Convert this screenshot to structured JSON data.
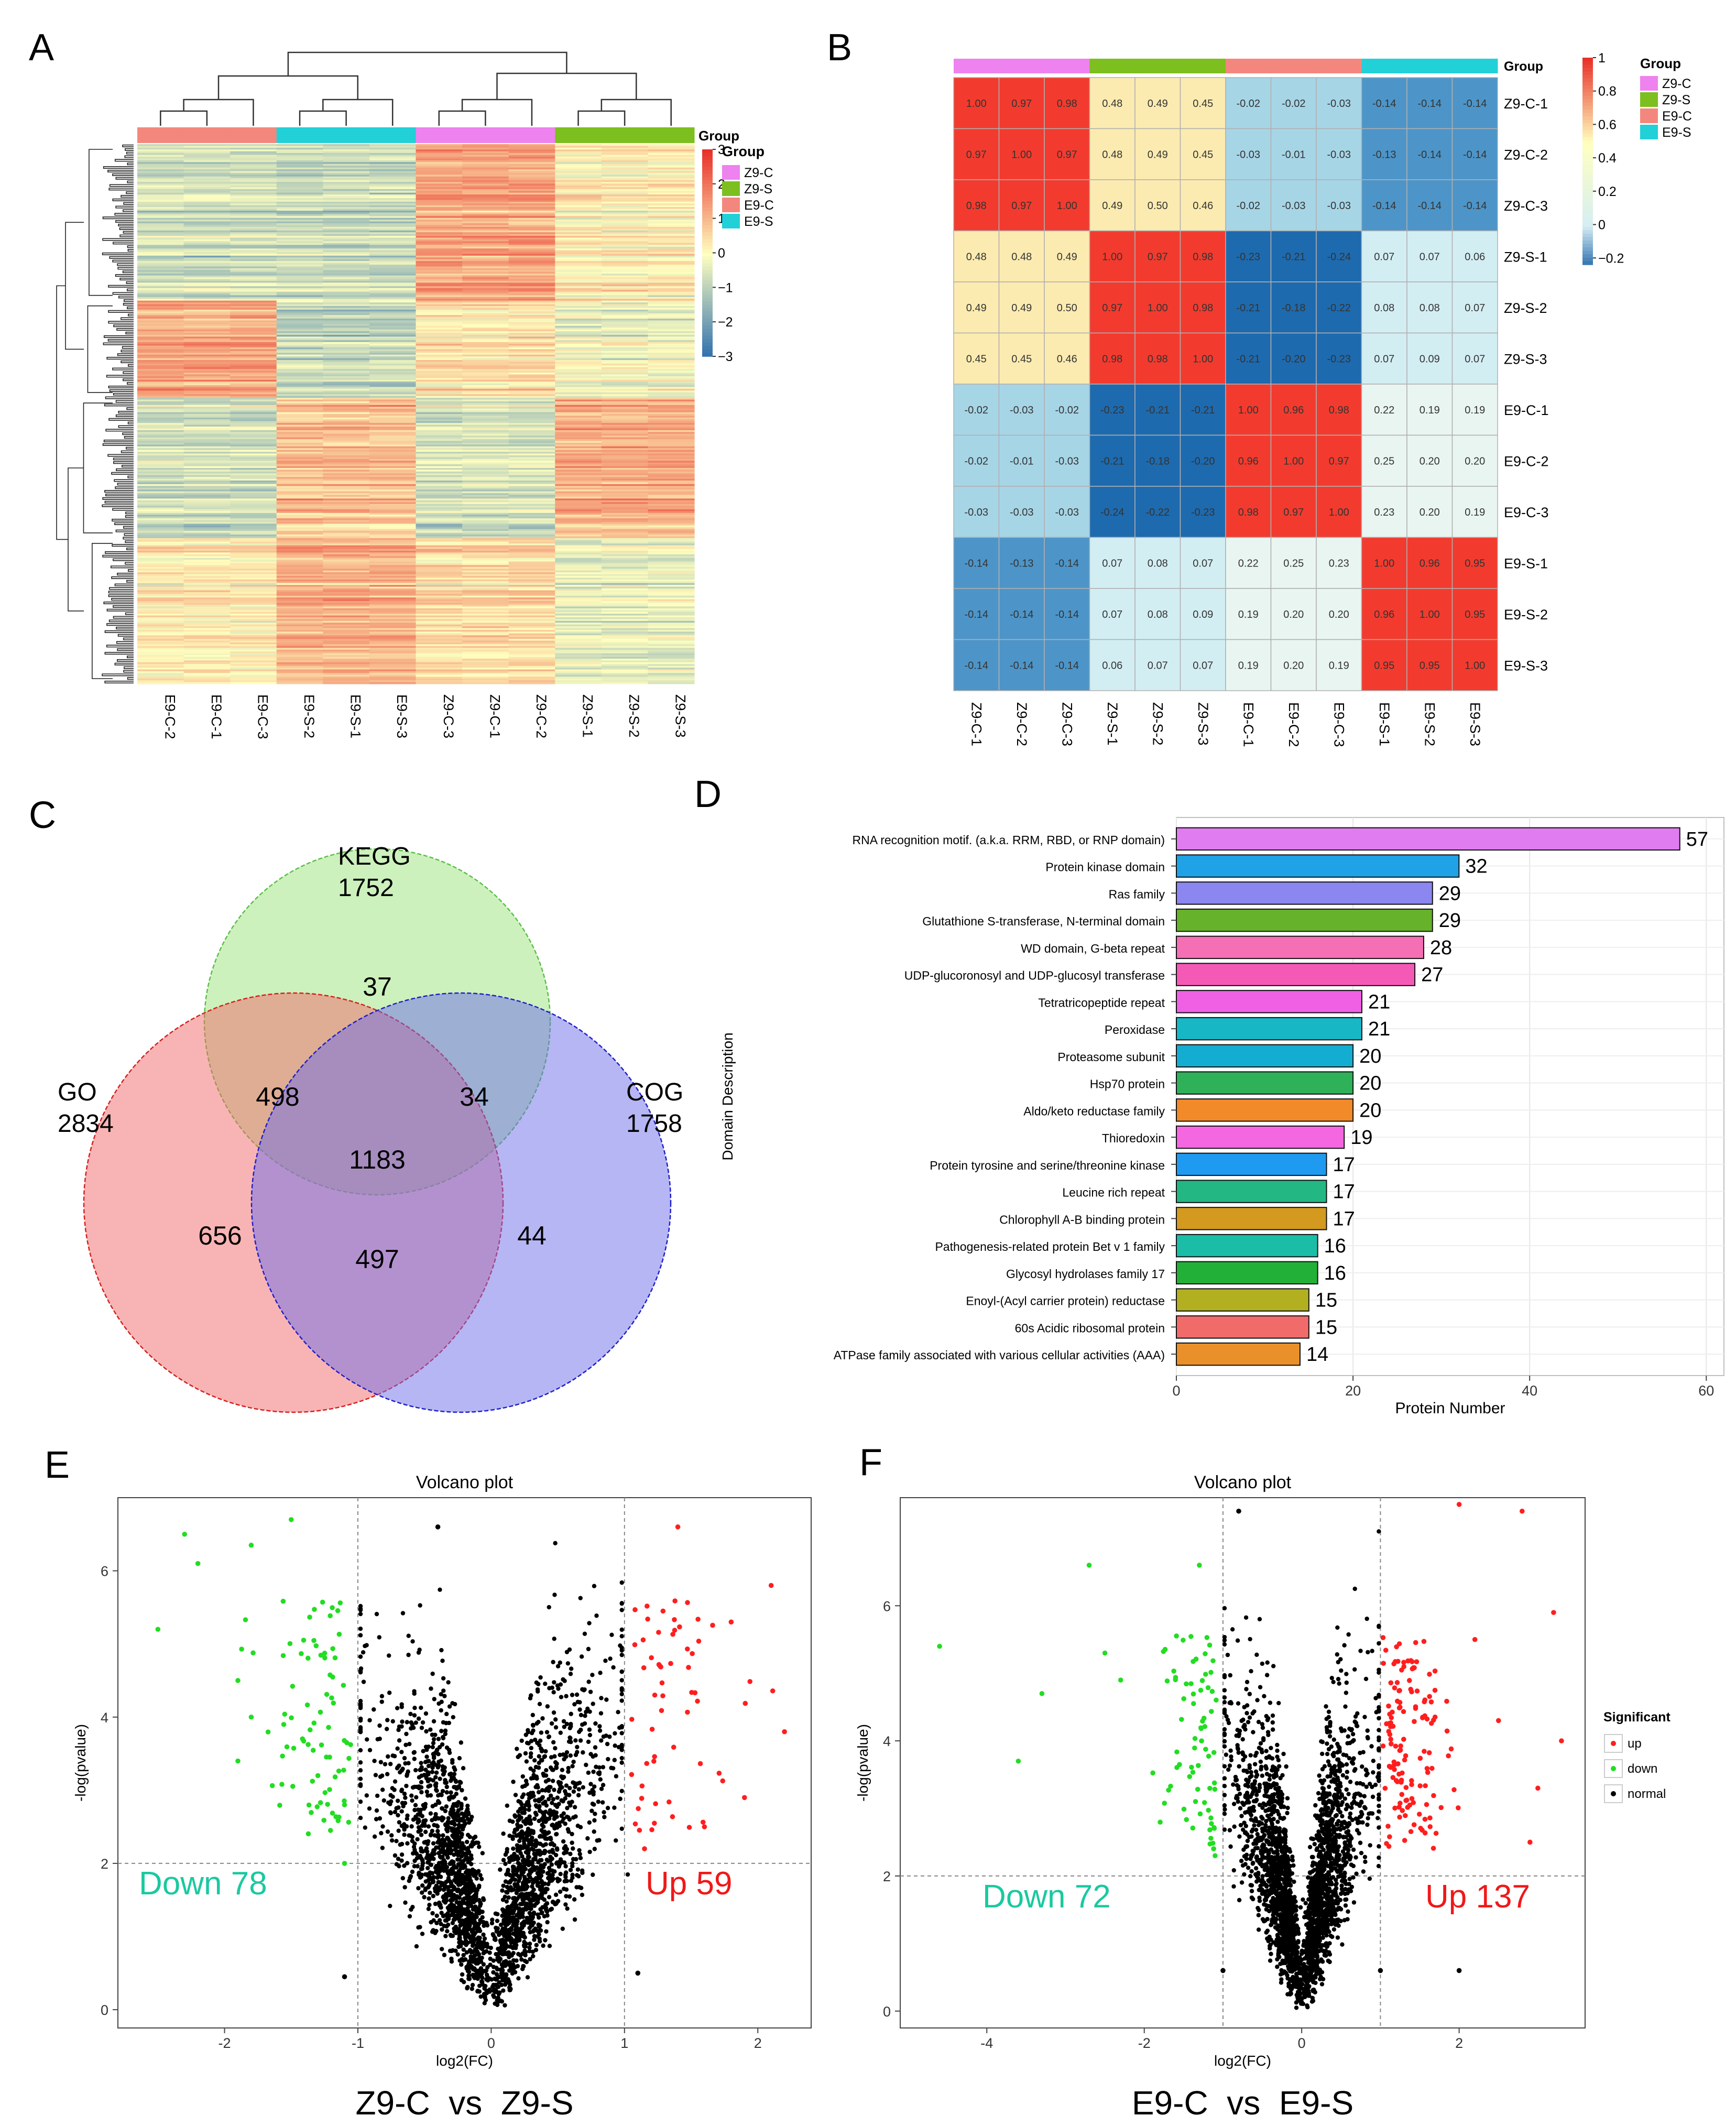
{
  "panels": {
    "A": {
      "letter": "A"
    },
    "B": {
      "letter": "B"
    },
    "C": {
      "letter": "C"
    },
    "D": {
      "letter": "D"
    },
    "E": {
      "letter": "E"
    },
    "F": {
      "letter": "F"
    }
  },
  "chart_data": [
    {
      "id": "A",
      "type": "heatmap",
      "legend_title": "Group",
      "groups": [
        {
          "name": "Z9-C",
          "color": "#EE82EE"
        },
        {
          "name": "Z9-S",
          "color": "#7CBF1F"
        },
        {
          "name": "E9-C",
          "color": "#F4877D"
        },
        {
          "name": "E9-S",
          "color": "#22D0D8"
        }
      ],
      "column_labels": [
        "E9-C-2",
        "E9-C-1",
        "E9-C-3",
        "E9-S-2",
        "E9-S-1",
        "E9-S-3",
        "Z9-C-3",
        "Z9-C-1",
        "Z9-C-2",
        "Z9-S-1",
        "Z9-S-2",
        "Z9-S-3"
      ],
      "column_groups": [
        "E9-C",
        "E9-C",
        "E9-C",
        "E9-S",
        "E9-S",
        "E9-S",
        "Z9-C",
        "Z9-C",
        "Z9-C",
        "Z9-S",
        "Z9-S",
        "Z9-S"
      ],
      "colorbar_ticks": [
        "3",
        "2",
        "1",
        "0",
        "-1",
        "-2",
        "-3"
      ],
      "colorbar_range": [
        -3,
        3
      ],
      "colors": {
        "low": "#2E6FAE",
        "mid": "#FFFFBF",
        "high": "#E8312A"
      }
    },
    {
      "id": "B",
      "type": "heatmap",
      "legend_title": "Group",
      "groups": [
        {
          "name": "Z9-C",
          "color": "#EE82EE"
        },
        {
          "name": "Z9-S",
          "color": "#7CBF1F"
        },
        {
          "name": "E9-C",
          "color": "#F4877D"
        },
        {
          "name": "E9-S",
          "color": "#22D0D8"
        }
      ],
      "labels": [
        "Z9-C-1",
        "Z9-C-2",
        "Z9-C-3",
        "Z9-S-1",
        "Z9-S-2",
        "Z9-S-3",
        "E9-C-1",
        "E9-C-2",
        "E9-C-3",
        "E9-S-1",
        "E9-S-2",
        "E9-S-3"
      ],
      "label_groups": [
        "Z9-C",
        "Z9-C",
        "Z9-C",
        "Z9-S",
        "Z9-S",
        "Z9-S",
        "E9-C",
        "E9-C",
        "E9-C",
        "E9-S",
        "E9-S",
        "E9-S"
      ],
      "matrix": [
        [
          "1.00",
          "0.97",
          "0.98",
          "0.48",
          "0.49",
          "0.45",
          "-0.02",
          "-0.02",
          "-0.03",
          "-0.14",
          "-0.14",
          "-0.14"
        ],
        [
          "0.97",
          "1.00",
          "0.97",
          "0.48",
          "0.49",
          "0.45",
          "-0.03",
          "-0.01",
          "-0.03",
          "-0.13",
          "-0.14",
          "-0.14"
        ],
        [
          "0.98",
          "0.97",
          "1.00",
          "0.49",
          "0.50",
          "0.46",
          "-0.02",
          "-0.03",
          "-0.03",
          "-0.14",
          "-0.14",
          "-0.14"
        ],
        [
          "0.48",
          "0.48",
          "0.49",
          "1.00",
          "0.97",
          "0.98",
          "-0.23",
          "-0.21",
          "-0.24",
          "0.07",
          "0.07",
          "0.06"
        ],
        [
          "0.49",
          "0.49",
          "0.50",
          "0.97",
          "1.00",
          "0.98",
          "-0.21",
          "-0.18",
          "-0.22",
          "0.08",
          "0.08",
          "0.07"
        ],
        [
          "0.45",
          "0.45",
          "0.46",
          "0.98",
          "0.98",
          "1.00",
          "-0.21",
          "-0.20",
          "-0.23",
          "0.07",
          "0.09",
          "0.07"
        ],
        [
          "-0.02",
          "-0.03",
          "-0.02",
          "-0.23",
          "-0.21",
          "-0.21",
          "1.00",
          "0.96",
          "0.98",
          "0.22",
          "0.19",
          "0.19"
        ],
        [
          "-0.02",
          "-0.01",
          "-0.03",
          "-0.21",
          "-0.18",
          "-0.20",
          "0.96",
          "1.00",
          "0.97",
          "0.25",
          "0.20",
          "0.20"
        ],
        [
          "-0.03",
          "-0.03",
          "-0.03",
          "-0.24",
          "-0.22",
          "-0.23",
          "0.98",
          "0.97",
          "1.00",
          "0.23",
          "0.20",
          "0.19"
        ],
        [
          "-0.14",
          "-0.13",
          "-0.14",
          "0.07",
          "0.08",
          "0.07",
          "0.22",
          "0.25",
          "0.23",
          "1.00",
          "0.96",
          "0.95"
        ],
        [
          "-0.14",
          "-0.14",
          "-0.14",
          "0.07",
          "0.08",
          "0.09",
          "0.19",
          "0.20",
          "0.20",
          "0.96",
          "1.00",
          "0.95"
        ],
        [
          "-0.14",
          "-0.14",
          "-0.14",
          "0.06",
          "0.07",
          "0.07",
          "0.19",
          "0.20",
          "0.19",
          "0.95",
          "0.95",
          "1.00"
        ]
      ],
      "colorbar_ticks": [
        "1",
        "0.8",
        "0.6",
        "0.4",
        "0.2",
        "0",
        "-0.2"
      ],
      "colorbar_range": [
        -0.24,
        1.0
      ],
      "colors": {
        "low": "#2E6FAE",
        "mid": "#FFFFBF",
        "high": "#E8312A"
      }
    },
    {
      "id": "C",
      "type": "venn",
      "sets": [
        {
          "name": "KEGG",
          "total": "1752",
          "color": "#9BE37A"
        },
        {
          "name": "GO",
          "total": "2834",
          "color": "#F26A6A"
        },
        {
          "name": "COG",
          "total": "1758",
          "color": "#6E6EEA"
        }
      ],
      "regions": [
        {
          "sets": [
            "KEGG"
          ],
          "value": "37"
        },
        {
          "sets": [
            "GO",
            "KEGG"
          ],
          "value": "498"
        },
        {
          "sets": [
            "KEGG",
            "COG"
          ],
          "value": "34"
        },
        {
          "sets": [
            "GO",
            "KEGG",
            "COG"
          ],
          "value": "1183"
        },
        {
          "sets": [
            "GO"
          ],
          "value": "656"
        },
        {
          "sets": [
            "GO",
            "COG"
          ],
          "value": "497"
        },
        {
          "sets": [
            "COG"
          ],
          "value": "44"
        }
      ]
    },
    {
      "id": "D",
      "type": "bar",
      "orientation": "horizontal",
      "xlabel": "Protein Number",
      "ylabel": "Domain Description",
      "xlim": [
        0,
        62
      ],
      "xticks": [
        0,
        20,
        40,
        60
      ],
      "categories": [
        "RNA recognition motif. (a.k.a. RRM, RBD, or RNP domain)",
        "Protein kinase domain",
        "Ras family",
        "Glutathione S-transferase, N-terminal domain",
        "WD domain, G-beta repeat",
        "UDP-glucoronosyl and UDP-glucosyl transferase",
        "Tetratricopeptide repeat",
        "Peroxidase",
        "Proteasome subunit",
        "Hsp70 protein",
        "Aldo/keto reductase family",
        "Thioredoxin",
        "Protein tyrosine and serine/threonine kinase",
        "Leucine rich repeat",
        "Chlorophyll A-B binding protein",
        "Pathogenesis-related protein Bet v 1 family",
        "Glycosyl hydrolases family 17",
        "Enoyl-(Acyl carrier protein) reductase",
        "60s Acidic ribosomal protein",
        "ATPase family associated with various cellular activities (AAA)"
      ],
      "values": [
        57,
        32,
        29,
        29,
        28,
        27,
        21,
        21,
        20,
        20,
        20,
        19,
        17,
        17,
        17,
        16,
        16,
        15,
        15,
        14
      ],
      "colors": [
        "#E07CF0",
        "#1FA2E6",
        "#8B86F0",
        "#66B22A",
        "#F56FB5",
        "#F559B6",
        "#F060E4",
        "#18B7C5",
        "#14ADD2",
        "#2FB15A",
        "#F28A29",
        "#F567E0",
        "#1E9BF0",
        "#22B783",
        "#D39A1F",
        "#1BBDA7",
        "#23B038",
        "#B2B020",
        "#F26B6B",
        "#E9902A"
      ],
      "grid": true
    },
    {
      "id": "E",
      "type": "scatter",
      "title": "Volcano plot",
      "subtitle": "Z9-C_vs_Z9-S",
      "xlabel": "log2(FC)",
      "ylabel": "-log(pvalue)",
      "xlim": [
        -2.8,
        2.4
      ],
      "ylim": [
        -0.25,
        7.0
      ],
      "xticks": [
        -2,
        -1,
        0,
        1,
        2
      ],
      "yticks": [
        0,
        2,
        4,
        6
      ],
      "fc_cutoff": 1,
      "p_cutoff": 2,
      "down_label": "Down 78",
      "up_label": "Up 59",
      "counts": {
        "down": 78,
        "up": 59,
        "normal": 2600
      },
      "outer_points": [
        [
          -2.3,
          6.5
        ],
        [
          -2.2,
          6.1
        ],
        [
          -1.8,
          6.35
        ],
        [
          -1.5,
          6.7
        ],
        [
          -2.5,
          5.2
        ],
        [
          -1.9,
          3.4
        ],
        [
          -1.8,
          4.0
        ],
        [
          -1.9,
          4.5
        ],
        [
          -1.3,
          3.2
        ],
        [
          -1.1,
          2.8
        ],
        [
          -0.4,
          6.6
        ],
        [
          1.4,
          6.6
        ],
        [
          2.1,
          5.8
        ],
        [
          1.8,
          5.3
        ],
        [
          2.2,
          3.8
        ],
        [
          1.9,
          2.9
        ],
        [
          -1.1,
          0.45
        ],
        [
          1.1,
          0.5
        ],
        [
          -1.1,
          2.0
        ],
        [
          1.15,
          2.2
        ]
      ],
      "colors": {
        "up": "#FF1E1E",
        "down": "#22DD22",
        "normal": "#000000"
      }
    },
    {
      "id": "F",
      "type": "scatter",
      "title": "Volcano plot",
      "subtitle": "E9-C_vs_E9-S",
      "xlabel": "log2(FC)",
      "ylabel": "-log(pvalue)",
      "xlim": [
        -5.1,
        3.6
      ],
      "ylim": [
        -0.25,
        7.6
      ],
      "xticks": [
        -4,
        -2,
        0,
        2
      ],
      "yticks": [
        0,
        2,
        4,
        6
      ],
      "fc_cutoff": 1,
      "p_cutoff": 2,
      "down_label": "Down 72",
      "up_label": "Up 137",
      "counts": {
        "down": 72,
        "up": 137,
        "normal": 2600
      },
      "outer_points": [
        [
          -4.6,
          5.4
        ],
        [
          -3.6,
          3.7
        ],
        [
          -2.7,
          6.6
        ],
        [
          -2.5,
          5.3
        ],
        [
          -2.3,
          4.9
        ],
        [
          -3.3,
          4.7
        ],
        [
          -1.3,
          6.6
        ],
        [
          -0.8,
          7.4
        ],
        [
          2.0,
          7.5
        ],
        [
          2.8,
          7.4
        ],
        [
          3.2,
          5.9
        ],
        [
          2.2,
          5.5
        ],
        [
          2.5,
          4.3
        ],
        [
          3.3,
          4.0
        ],
        [
          3.0,
          3.3
        ],
        [
          2.0,
          0.6
        ],
        [
          2.9,
          2.5
        ],
        [
          -1.0,
          0.6
        ],
        [
          1.0,
          0.6
        ],
        [
          -1.1,
          2.3
        ]
      ],
      "legend_title": "Significant",
      "legend": [
        {
          "label": "up",
          "color": "#FF1E1E"
        },
        {
          "label": "down",
          "color": "#22DD22"
        },
        {
          "label": "normal",
          "color": "#000000"
        }
      ],
      "colors": {
        "up": "#FF1E1E",
        "down": "#22DD22",
        "normal": "#000000"
      }
    }
  ]
}
